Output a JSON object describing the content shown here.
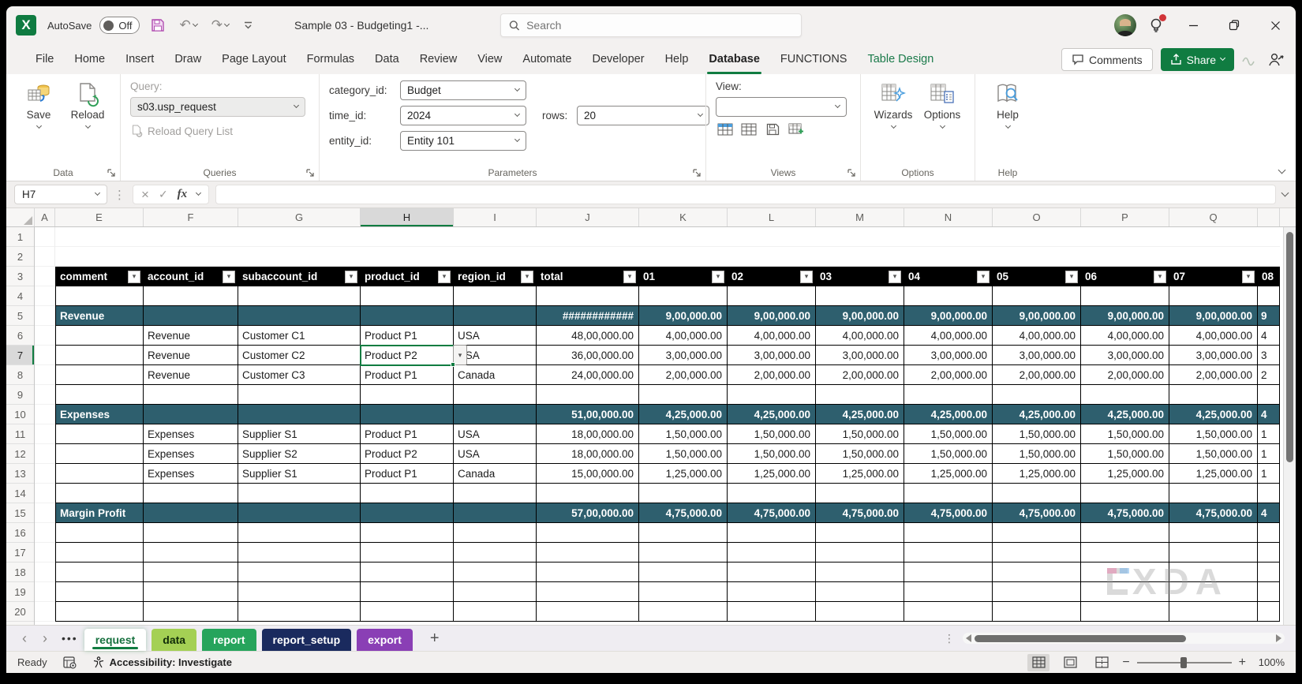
{
  "colors": {
    "accent_green": "#107c41",
    "table_section_teal": "#2e5f6e",
    "table_header_black": "#000000"
  },
  "window": {
    "title": "Sample 03 - Budgeting1  -...",
    "autosave": {
      "label": "AutoSave",
      "state": "Off"
    },
    "search": {
      "placeholder": "Search"
    }
  },
  "ribbon_tabs": {
    "items": [
      "File",
      "Home",
      "Insert",
      "Draw",
      "Page Layout",
      "Formulas",
      "Data",
      "Review",
      "View",
      "Automate",
      "Developer",
      "Help",
      "Database",
      "FUNCTIONS",
      "Table Design"
    ],
    "active": "Database",
    "contextual": "Table Design",
    "comments": "Comments",
    "share": "Share"
  },
  "ribbon": {
    "data_group": {
      "label": "Data",
      "save": "Save",
      "reload": "Reload"
    },
    "queries_group": {
      "label": "Queries",
      "query_label": "Query:",
      "query_value": "s03.usp_request",
      "reload_list": "Reload Query List"
    },
    "parameters_group": {
      "label": "Parameters",
      "fields": [
        {
          "label": "category_id:",
          "value": "Budget"
        },
        {
          "label": "time_id:",
          "value": "2024"
        },
        {
          "label": "entity_id:",
          "value": "Entity 101"
        }
      ],
      "rows_field": {
        "label": "rows:",
        "value": "20"
      }
    },
    "views_group": {
      "label": "Views",
      "view_label": "View:",
      "view_value": ""
    },
    "options_group": {
      "label": "Options",
      "wizards": "Wizards",
      "options": "Options"
    },
    "help_group": {
      "label": "Help",
      "help": "Help"
    }
  },
  "formula_bar": {
    "name_box": "H7",
    "formula": ""
  },
  "grid": {
    "column_headers": [
      "A",
      "E",
      "F",
      "G",
      "H",
      "I",
      "J",
      "K",
      "L",
      "M",
      "N",
      "O",
      "P",
      "Q",
      ""
    ],
    "selected_column": "H",
    "row_count": 20,
    "selected_row": 7,
    "selected_cell": "H7"
  },
  "table": {
    "headers": [
      "comment",
      "account_id",
      "subaccount_id",
      "product_id",
      "region_id",
      "total",
      "01",
      "02",
      "03",
      "04",
      "05",
      "06",
      "07",
      "08"
    ],
    "first_row": 3,
    "last_row": 20,
    "rows": [
      {
        "n": 5,
        "type": "section",
        "comment": "Revenue",
        "total": "############",
        "month": "9,00,000.00",
        "partial": "9"
      },
      {
        "n": 6,
        "type": "data",
        "account_id": "Revenue",
        "subaccount_id": "Customer C1",
        "product_id": "Product P1",
        "region_id": "USA",
        "total": "48,00,000.00",
        "month": "4,00,000.00",
        "partial": "4"
      },
      {
        "n": 7,
        "type": "data",
        "account_id": "Revenue",
        "subaccount_id": "Customer C2",
        "product_id": "Product P2",
        "region_id": "USA",
        "total": "36,00,000.00",
        "month": "3,00,000.00",
        "partial": "3",
        "selected": true
      },
      {
        "n": 8,
        "type": "data",
        "account_id": "Revenue",
        "subaccount_id": "Customer C3",
        "product_id": "Product P1",
        "region_id": "Canada",
        "total": "24,00,000.00",
        "month": "2,00,000.00",
        "partial": "2"
      },
      {
        "n": 10,
        "type": "section",
        "comment": "Expenses",
        "total": "51,00,000.00",
        "month": "4,25,000.00",
        "partial": "4"
      },
      {
        "n": 11,
        "type": "data",
        "account_id": "Expenses",
        "subaccount_id": "Supplier S1",
        "product_id": "Product P1",
        "region_id": "USA",
        "total": "18,00,000.00",
        "month": "1,50,000.00",
        "partial": "1"
      },
      {
        "n": 12,
        "type": "data",
        "account_id": "Expenses",
        "subaccount_id": "Supplier S2",
        "product_id": "Product P2",
        "region_id": "USA",
        "total": "18,00,000.00",
        "month": "1,50,000.00",
        "partial": "1"
      },
      {
        "n": 13,
        "type": "data",
        "account_id": "Expenses",
        "subaccount_id": "Supplier S1",
        "product_id": "Product P1",
        "region_id": "Canada",
        "total": "15,00,000.00",
        "month": "1,25,000.00",
        "partial": "1"
      },
      {
        "n": 15,
        "type": "section",
        "comment": "Margin Profit",
        "total": "57,00,000.00",
        "month": "4,75,000.00",
        "partial": "4"
      }
    ]
  },
  "sheet_bar": {
    "tabs": [
      {
        "label": "request",
        "active": true,
        "bg": "#ffffff",
        "text": "#17713f"
      },
      {
        "label": "data",
        "bg": "#a4d054",
        "text": "#102b08"
      },
      {
        "label": "report",
        "bg": "#26a45c",
        "text": "#ffffff"
      },
      {
        "label": "report_setup",
        "bg": "#1a2a5e",
        "text": "#ffffff"
      },
      {
        "label": "export",
        "bg": "#8a3fb5",
        "text": "#ffffff"
      }
    ]
  },
  "status_bar": {
    "ready": "Ready",
    "accessibility": "Accessibility: Investigate",
    "zoom": "100%"
  },
  "watermark": "XDA",
  "icons": {
    "undo": "↶",
    "redo": "↷",
    "vertical_dots": "⋮",
    "cancel": "×",
    "enter": "✓",
    "fx": "fx",
    "filter": "▾",
    "more_sheets": "•••",
    "prev_sheet": "‹",
    "next_sheet": "›",
    "add_sheet": "+",
    "zoom_out": "−",
    "zoom_in": "+"
  }
}
